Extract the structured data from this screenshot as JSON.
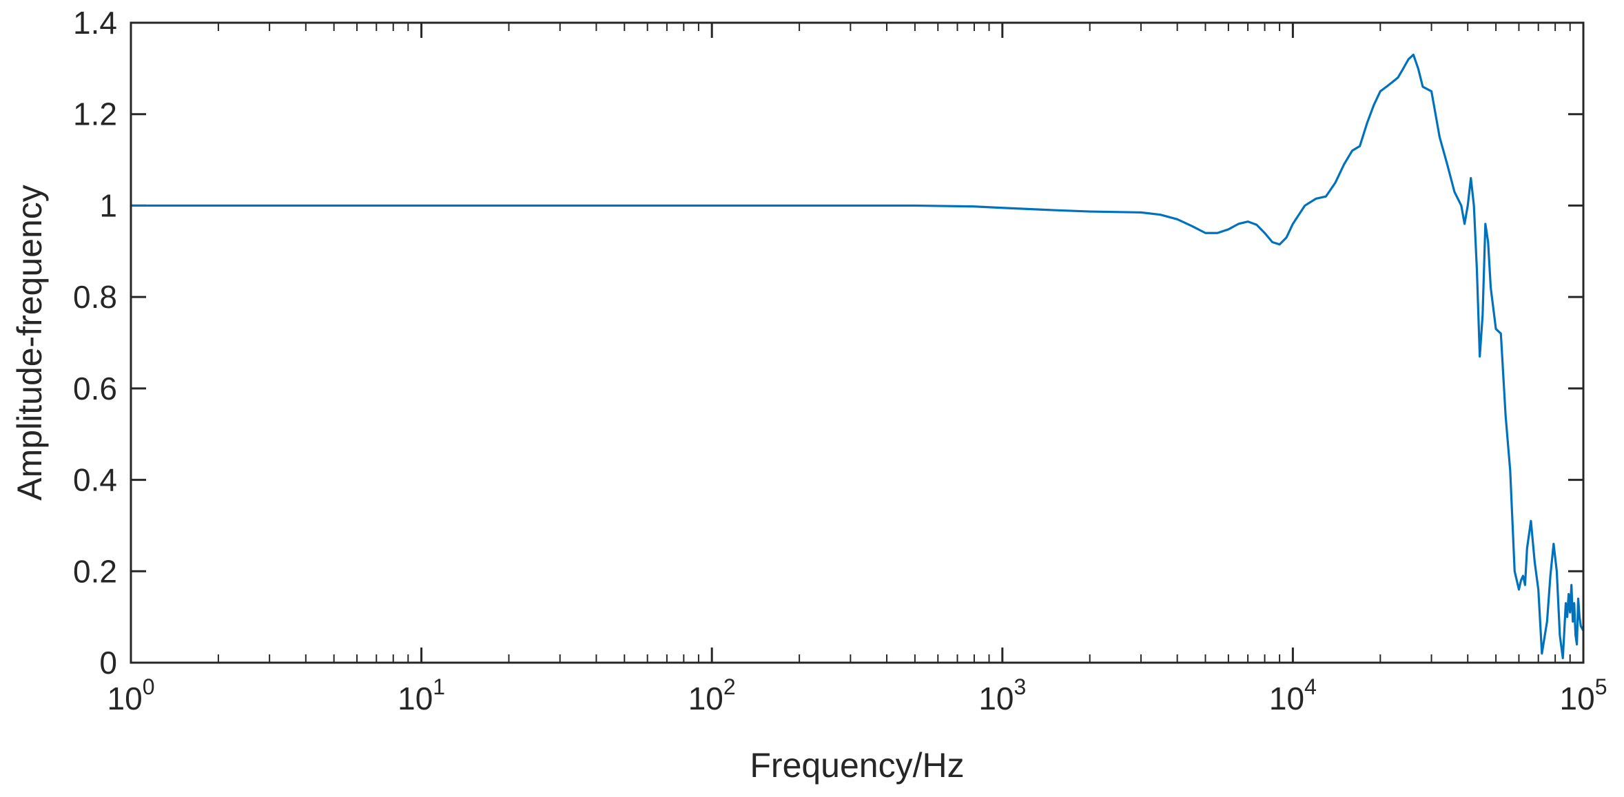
{
  "chart_data": {
    "type": "line",
    "title": "",
    "xlabel": "Frequency/Hz",
    "ylabel": "Amplitude-frequency",
    "x_scale": "log",
    "xlim": [
      1,
      100000
    ],
    "ylim": [
      0,
      1.4
    ],
    "grid": false,
    "legend": "none",
    "x_tick_labels": [
      {
        "base": "10",
        "exp": "0",
        "value": 1
      },
      {
        "base": "10",
        "exp": "1",
        "value": 10
      },
      {
        "base": "10",
        "exp": "2",
        "value": 100
      },
      {
        "base": "10",
        "exp": "3",
        "value": 1000
      },
      {
        "base": "10",
        "exp": "4",
        "value": 10000
      },
      {
        "base": "10",
        "exp": "5",
        "value": 100000
      }
    ],
    "y_tick_labels": [
      "0",
      "0.2",
      "0.4",
      "0.6",
      "0.8",
      "1",
      "1.2",
      "1.4"
    ],
    "y_tick_values": [
      0,
      0.2,
      0.4,
      0.6,
      0.8,
      1,
      1.2,
      1.4
    ],
    "series": [
      {
        "color": "#0072BD",
        "x": [
          1,
          10,
          100,
          300,
          500,
          800,
          1000,
          1500,
          2000,
          3000,
          3500,
          4000,
          4500,
          5000,
          5500,
          6000,
          6500,
          7000,
          7500,
          8000,
          8500,
          9000,
          9500,
          10000,
          11000,
          12000,
          13000,
          14000,
          15000,
          16000,
          17000,
          18000,
          19000,
          20000,
          21000,
          22000,
          23000,
          24000,
          25000,
          26000,
          27000,
          28000,
          30000,
          32000,
          34000,
          36000,
          38000,
          39000,
          40000,
          41000,
          42000,
          43000,
          44000,
          45000,
          46000,
          47000,
          48000,
          50000,
          52000,
          54000,
          56000,
          58000,
          60000,
          61000,
          62000,
          63000,
          64000,
          66000,
          68000,
          70000,
          72000,
          75000,
          77000,
          79000,
          81000,
          83000,
          85000,
          86000,
          87000,
          88000,
          89000,
          90000,
          91000,
          92000,
          93000,
          94000,
          95000,
          96000,
          97000,
          98000,
          100000
        ],
        "y": [
          1.0,
          1.0,
          1.0,
          1.0,
          1.0,
          0.998,
          0.995,
          0.99,
          0.987,
          0.985,
          0.98,
          0.97,
          0.955,
          0.94,
          0.94,
          0.948,
          0.96,
          0.965,
          0.958,
          0.94,
          0.92,
          0.915,
          0.93,
          0.96,
          1.0,
          1.015,
          1.02,
          1.05,
          1.09,
          1.12,
          1.13,
          1.18,
          1.22,
          1.25,
          1.26,
          1.27,
          1.28,
          1.3,
          1.32,
          1.33,
          1.3,
          1.26,
          1.25,
          1.15,
          1.09,
          1.03,
          1.0,
          0.96,
          1.0,
          1.06,
          1.0,
          0.86,
          0.67,
          0.76,
          0.96,
          0.92,
          0.82,
          0.73,
          0.72,
          0.54,
          0.42,
          0.2,
          0.16,
          0.18,
          0.19,
          0.17,
          0.25,
          0.31,
          0.22,
          0.16,
          0.02,
          0.09,
          0.19,
          0.26,
          0.2,
          0.06,
          0.01,
          0.07,
          0.13,
          0.1,
          0.15,
          0.11,
          0.17,
          0.09,
          0.13,
          0.06,
          0.04,
          0.14,
          0.1,
          0.08,
          0.07
        ]
      }
    ]
  }
}
